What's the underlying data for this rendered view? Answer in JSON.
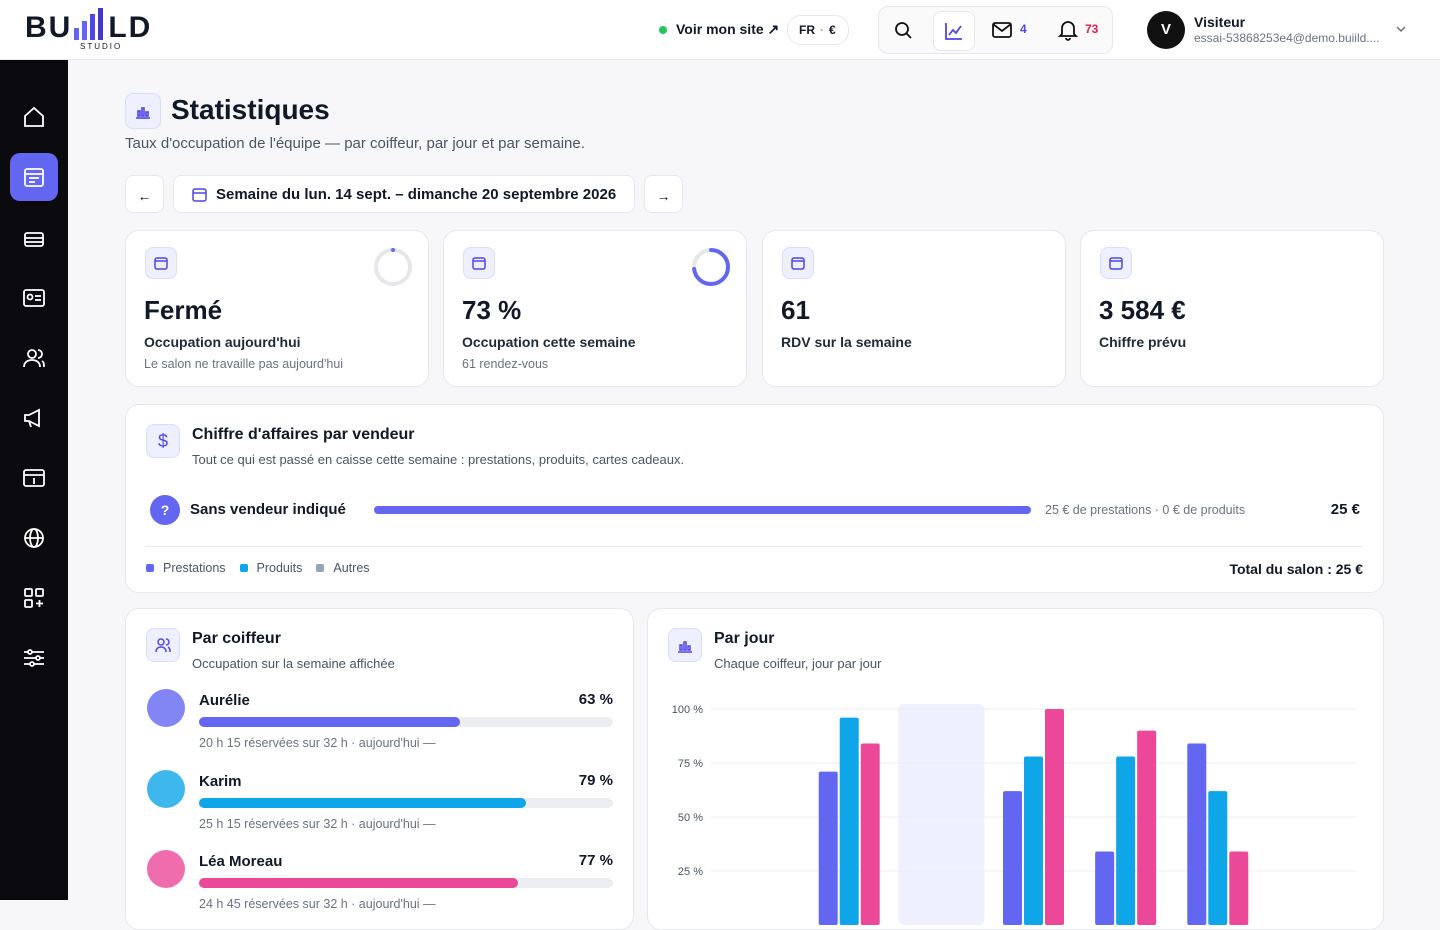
{
  "header": {
    "logo_left": "BU",
    "logo_right": "LD",
    "logo_sub": "STUDIO",
    "site_link": "Voir mon site ↗",
    "lang": "FR",
    "currency": "€",
    "messages": "4",
    "notifications": "73",
    "user_initial": "V",
    "user_name": "Visiteur",
    "user_email": "essai-53868253e4@demo.buiild...."
  },
  "page": {
    "title": "Statistiques",
    "subtitle": "Taux d'occupation de l'équipe — par coiffeur, par jour et par semaine.",
    "prev": "←",
    "week": "Semaine du lun. 14 sept. – dimanche 20 septembre 2026",
    "next": "→"
  },
  "cards": [
    {
      "value": "Fermé",
      "label": "Occupation aujourd'hui",
      "note": "Le salon ne travaille pas aujourd'hui",
      "ring": 0
    },
    {
      "value": "73 %",
      "label": "Occupation cette semaine",
      "note": "61 rendez-vous",
      "ring": 73
    },
    {
      "value": "61",
      "label": "RDV sur la semaine"
    },
    {
      "value": "3 584 €",
      "label": "Chiffre prévu"
    }
  ],
  "sales": {
    "title": "Chiffre d'affaires par vendeur",
    "subtitle": "Tout ce qui est passé en caisse cette semaine : prestations, produits, cartes cadeaux.",
    "rows": [
      {
        "icon": "?",
        "name": "Sans vendeur indiqué",
        "share": 100,
        "detail": "25 € de prestations · 0 € de produits",
        "amount": "25 €"
      }
    ],
    "legend": [
      {
        "name": "Prestations",
        "color": "#6366f1"
      },
      {
        "name": "Produits",
        "color": "#0ea5e9"
      },
      {
        "name": "Autres",
        "color": "#94a3b8"
      }
    ],
    "total": "Total du salon : 25 €"
  },
  "staff": {
    "title": "Par coiffeur",
    "subtitle": "Occupation sur la semaine affichée",
    "rows": [
      {
        "name": "Aurélie",
        "value": 63,
        "value_label": "63 %",
        "detail": "20 h 15 réservées sur 32 h · aujourd'hui —",
        "color": "#6366f1"
      },
      {
        "name": "Karim",
        "value": 79,
        "value_label": "79 %",
        "detail": "25 h 15 réservées sur 32 h · aujourd'hui —",
        "color": "#0ea5e9"
      },
      {
        "name": "Léa Moreau",
        "value": 77,
        "value_label": "77 %",
        "detail": "24 h 45 réservées sur 32 h · aujourd'hui —",
        "color": "#ec4899"
      }
    ]
  },
  "chart_data": {
    "type": "bar",
    "title": "Par jour",
    "subtitle": "Chaque coiffeur, jour par jour",
    "categories": [
      null,
      null,
      null,
      null,
      null,
      null,
      null
    ],
    "series": [
      {
        "color": "#6366f1",
        "values": [
          null,
          71,
          null,
          62,
          34,
          84,
          null
        ]
      },
      {
        "color": "#0ea5e9",
        "values": [
          null,
          96,
          null,
          78,
          78,
          62,
          null
        ]
      },
      {
        "color": "#ec4899",
        "values": [
          null,
          84,
          null,
          100,
          90,
          34,
          null
        ]
      }
    ],
    "ylim": [
      0,
      100
    ],
    "yticks": [
      {
        "value": 25,
        "label": "25 %"
      },
      {
        "value": 50,
        "label": "50 %"
      },
      {
        "value": 75,
        "label": "75 %"
      },
      {
        "value": 100,
        "label": "100 %"
      }
    ],
    "grid": true,
    "highlight": 2
  }
}
